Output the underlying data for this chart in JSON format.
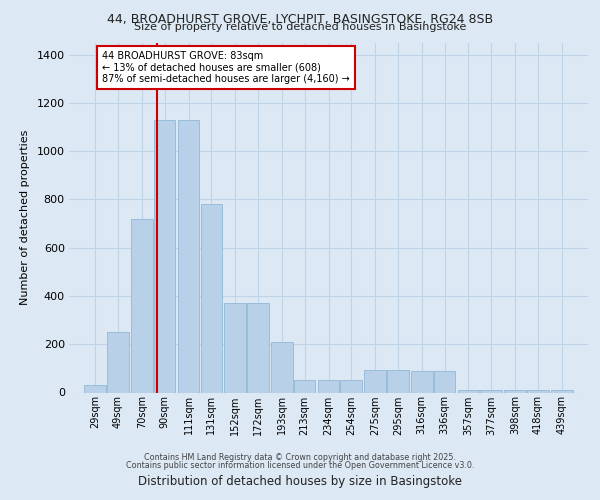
{
  "title_line1": "44, BROADHURST GROVE, LYCHPIT, BASINGSTOKE, RG24 8SB",
  "title_line2": "Size of property relative to detached houses in Basingstoke",
  "xlabel": "Distribution of detached houses by size in Basingstoke",
  "ylabel": "Number of detached properties",
  "categories": [
    "29sqm",
    "49sqm",
    "70sqm",
    "90sqm",
    "111sqm",
    "131sqm",
    "152sqm",
    "172sqm",
    "193sqm",
    "213sqm",
    "234sqm",
    "254sqm",
    "275sqm",
    "295sqm",
    "316sqm",
    "336sqm",
    "357sqm",
    "377sqm",
    "398sqm",
    "418sqm",
    "439sqm"
  ],
  "bin_sqm": [
    29,
    49,
    70,
    90,
    111,
    131,
    152,
    172,
    193,
    213,
    234,
    254,
    275,
    295,
    316,
    336,
    357,
    377,
    398,
    418,
    439
  ],
  "heights": [
    30,
    250,
    720,
    1130,
    1130,
    780,
    370,
    370,
    210,
    50,
    50,
    50,
    95,
    95,
    90,
    90,
    10,
    10,
    10,
    10,
    10
  ],
  "bar_color": "#b8d0e8",
  "bar_edge_color": "#90b8d8",
  "grid_color": "#c0d4e8",
  "bg_color": "#dce8f4",
  "vline_color": "#cc0000",
  "annotation_text": "44 BROADHURST GROVE: 83sqm\n← 13% of detached houses are smaller (608)\n87% of semi-detached houses are larger (4,160) →",
  "ann_box_fc": "#ffffff",
  "ann_box_ec": "#cc0000",
  "ylim": [
    0,
    1450
  ],
  "yticks": [
    0,
    200,
    400,
    600,
    800,
    1000,
    1200,
    1400
  ],
  "property_sqm": 83,
  "footer_line1": "Contains HM Land Registry data © Crown copyright and database right 2025.",
  "footer_line2": "Contains public sector information licensed under the Open Government Licence v3.0."
}
